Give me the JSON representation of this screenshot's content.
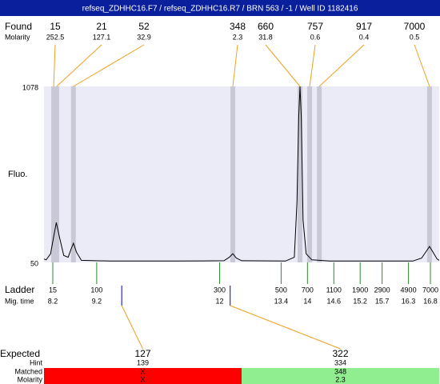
{
  "header": {
    "title": "refseq_ZDHHC16.F7 / refseq_ZDHHC16.R7 / BRN 563 / -1 / Well ID 1182416"
  },
  "found": {
    "label": "Found",
    "molarity_label": "Molarity",
    "sizes": [
      15,
      21,
      52,
      348,
      660,
      757,
      917,
      7000
    ],
    "molarities": [
      252.5,
      127.1,
      32.9,
      2.3,
      31.8,
      0.6,
      0.4,
      0.5
    ]
  },
  "chart_data": {
    "type": "line",
    "y_label": "Fluo.",
    "xlim": [
      8.0,
      17.0
    ],
    "ylim": [
      50,
      1078
    ],
    "yticks": [
      50,
      1078
    ],
    "x": [
      8.0,
      8.05,
      8.15,
      8.22,
      8.28,
      8.35,
      8.45,
      8.55,
      8.62,
      8.67,
      8.74,
      8.85,
      9.5,
      11.0,
      12.1,
      12.22,
      12.3,
      12.38,
      12.5,
      13.5,
      13.7,
      13.76,
      13.8,
      13.83,
      13.86,
      13.9,
      13.97,
      14.1,
      14.5,
      16.4,
      16.6,
      16.72,
      16.78,
      16.86,
      16.95,
      17.0
    ],
    "values": [
      70,
      65,
      100,
      200,
      283,
      200,
      90,
      80,
      130,
      162,
      110,
      62,
      58,
      58,
      60,
      80,
      101,
      75,
      60,
      58,
      80,
      400,
      900,
      1078,
      900,
      300,
      100,
      65,
      58,
      58,
      75,
      120,
      143,
      110,
      70,
      62
    ],
    "color": "#000000",
    "background": "#ebebf8",
    "peak_x": [
      8.22,
      8.29,
      8.67,
      12.3,
      13.83,
      14.05,
      14.27,
      16.78
    ],
    "peak_color": "#c8c8d6"
  },
  "ladder": {
    "label": "Ladder",
    "mig_label": "Mig. time",
    "sizes": [
      15,
      100,
      300,
      500,
      700,
      1100,
      1900,
      2900,
      4900,
      7000
    ],
    "mig_times": [
      8.2,
      9.2,
      12,
      13.4,
      14,
      14.6,
      15.2,
      15.7,
      16.3,
      16.8
    ]
  },
  "expected": {
    "label": "Expected",
    "hint_label": "Hint",
    "matched_label": "Matched",
    "molarity_label": "Molarity",
    "items": [
      {
        "size": 127,
        "hint": 139,
        "matched": "X",
        "molarity": "X",
        "mig_time": 9.77,
        "color": "#ff0000"
      },
      {
        "size": 322,
        "hint": 334,
        "matched": 348,
        "molarity": 2.3,
        "mig_time": 12.24,
        "color": "#90ee90"
      }
    ]
  }
}
